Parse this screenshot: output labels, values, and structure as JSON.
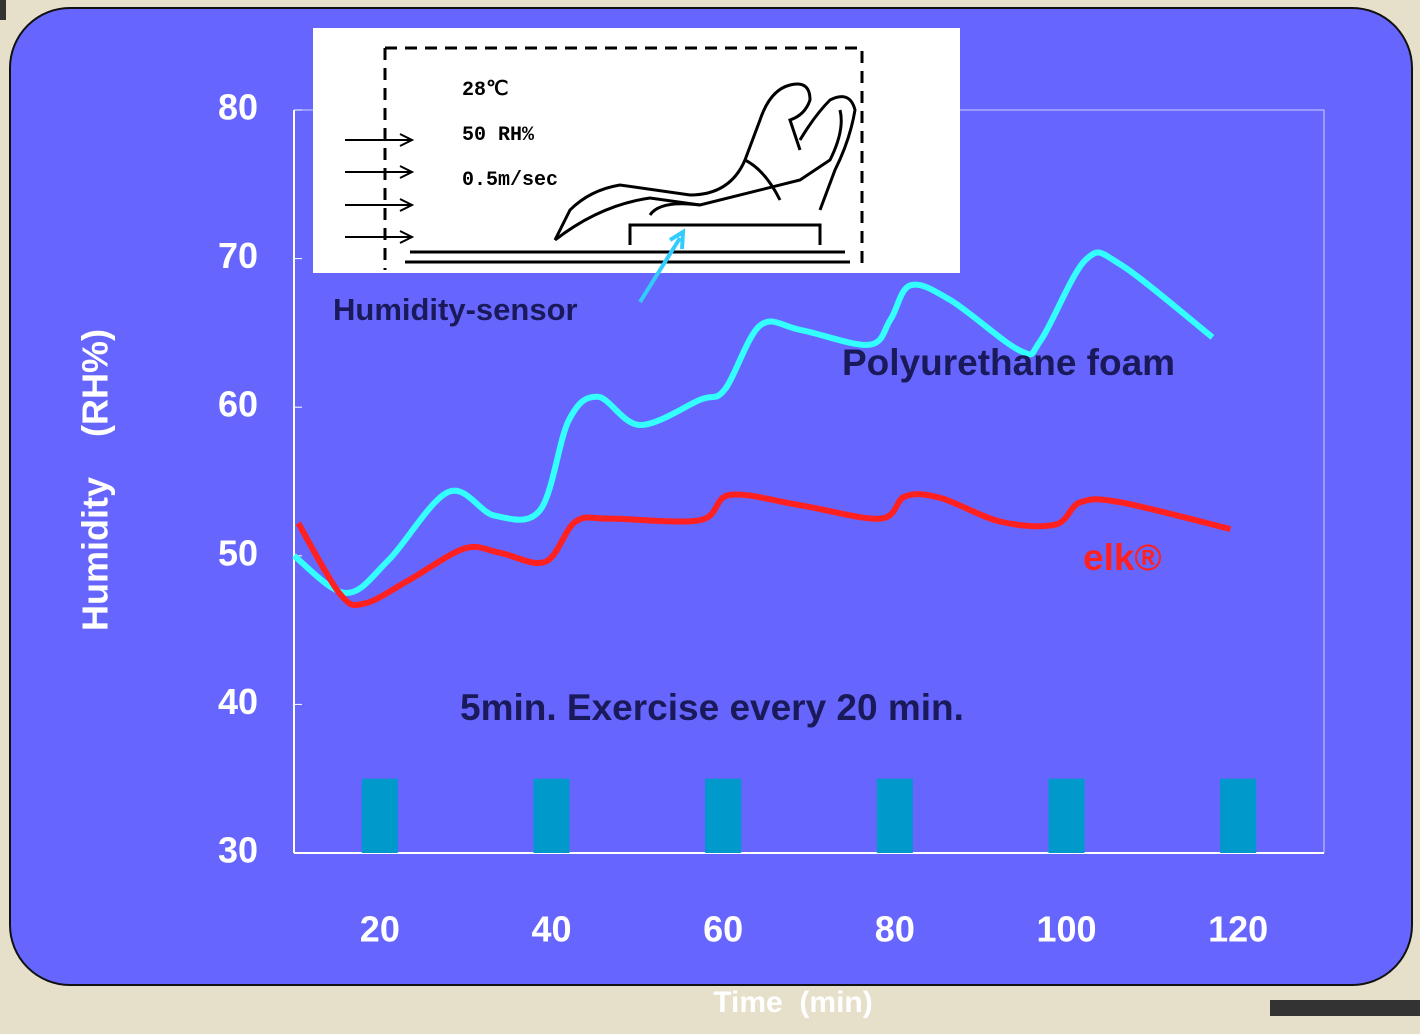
{
  "chart_data": {
    "type": "line",
    "x_label": "Time  (min)",
    "y_label": "Humidity    (RH%)",
    "xlim": [
      10,
      130
    ],
    "ylim": [
      30,
      80
    ],
    "xticks": [
      20,
      40,
      60,
      80,
      100,
      120
    ],
    "yticks": [
      30,
      40,
      50,
      60,
      70,
      80
    ],
    "series": [
      {
        "name": "Polyurethane foam",
        "color": "#33ffff",
        "x": [
          10,
          16,
          21,
          28,
          33.4,
          38.7,
          42,
          45.4,
          50.3,
          57.3,
          60.2,
          64.3,
          69,
          77,
          79.5,
          81.8,
          86.5,
          94.6,
          97,
          102.2,
          106.3,
          117
        ],
        "values": [
          50,
          47.5,
          49.7,
          54.3,
          52.7,
          53.1,
          59.1,
          60.7,
          58.8,
          60.5,
          61.2,
          65.5,
          65.2,
          64.2,
          65.9,
          68.2,
          67.2,
          63.8,
          64.5,
          69.9,
          69.6,
          64.7
        ]
      },
      {
        "name": "elk®",
        "color": "#ff2020",
        "x": [
          10.5,
          15.4,
          18.3,
          23.5,
          29.9,
          34,
          39.3,
          42.8,
          46.8,
          57.3,
          60.8,
          69,
          78.3,
          81.2,
          85.3,
          92.3,
          98.7,
          101.6,
          106.3,
          119.1
        ],
        "values": [
          52.2,
          47.4,
          46.8,
          48.4,
          50.5,
          50.2,
          49.6,
          52.3,
          52.5,
          52.4,
          54.1,
          53.4,
          52.5,
          54,
          53.9,
          52.3,
          52.1,
          53.6,
          53.6,
          51.8
        ]
      }
    ],
    "bars": {
      "x": [
        20,
        40,
        60,
        80,
        100,
        120
      ],
      "values": [
        35,
        35,
        35,
        35,
        35,
        35
      ],
      "color": "#0099cc"
    },
    "annotations": [
      "5min. Exercise every 20 min.",
      "Humidity-sensor"
    ]
  },
  "inset": {
    "lines": [
      "28℃",
      "50 RH%",
      "0.5m/sec"
    ]
  }
}
